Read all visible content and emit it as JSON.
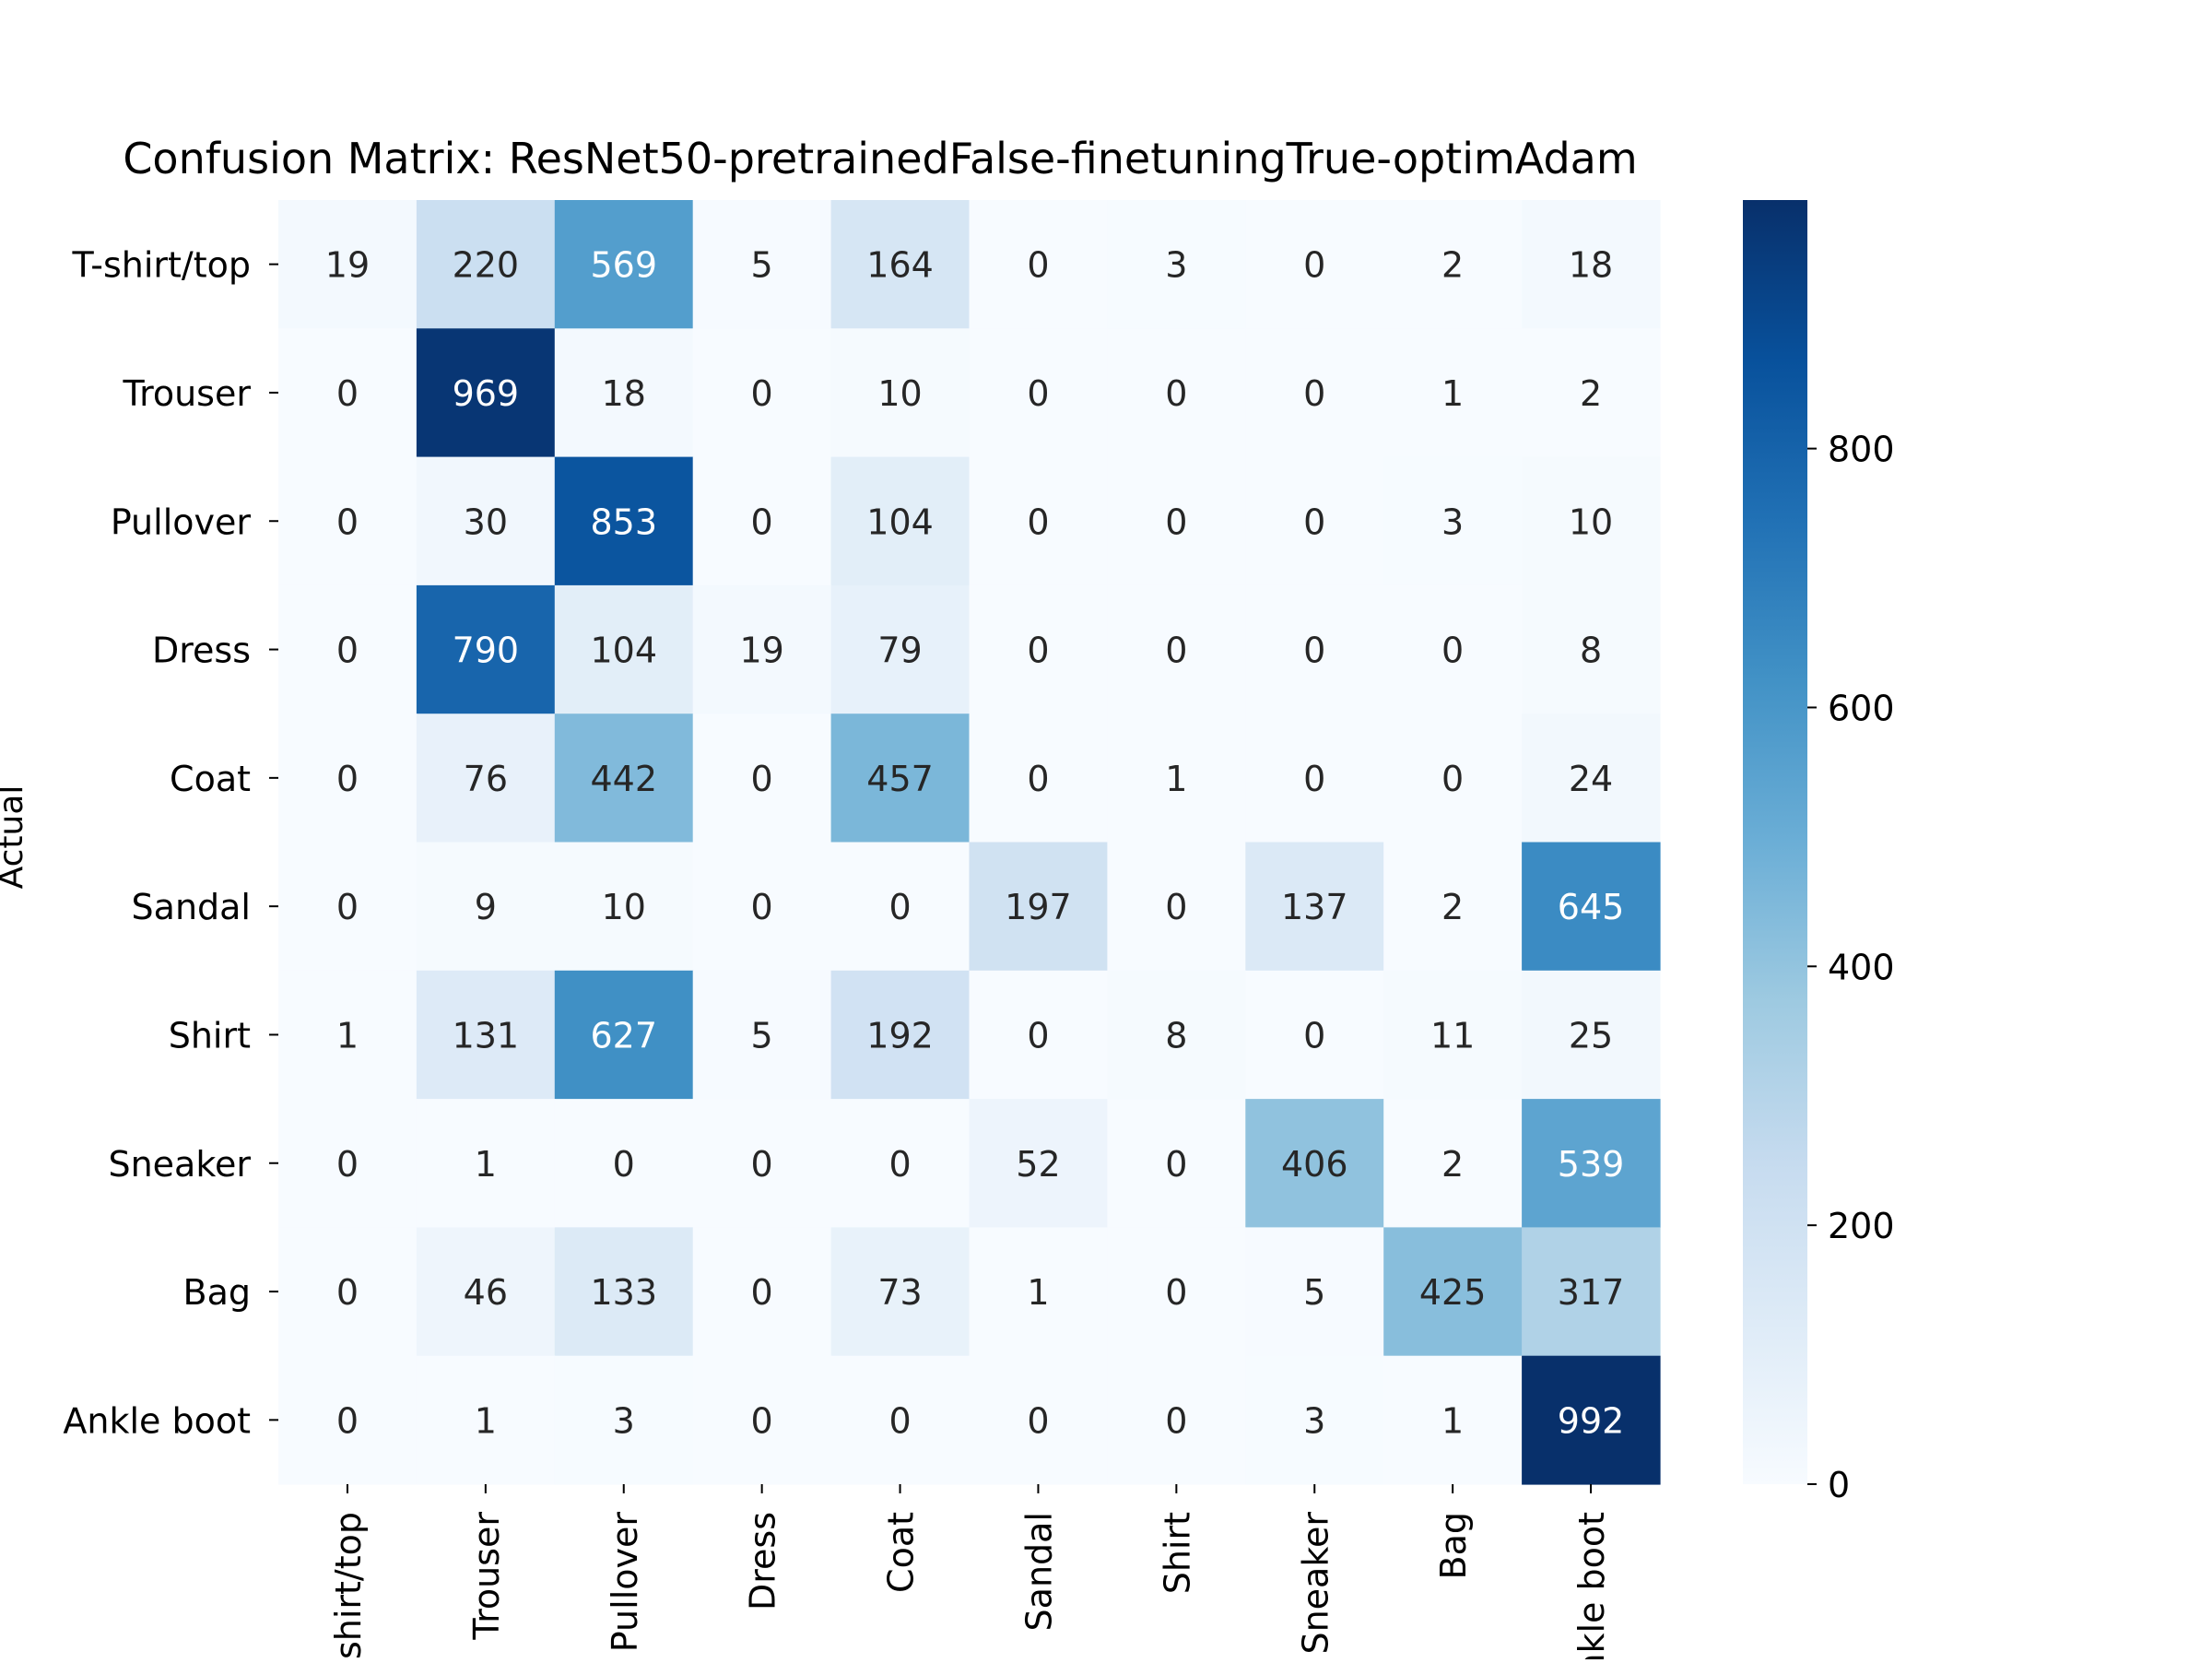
{
  "chart_data": {
    "type": "heatmap",
    "title": "Confusion Matrix: ResNet50-pretrainedFalse-finetuningTrue-optimAdam",
    "xlabel": "",
    "ylabel": "Actual",
    "row_labels": [
      "T-shirt/top",
      "Trouser",
      "Pullover",
      "Dress",
      "Coat",
      "Sandal",
      "Shirt",
      "Sneaker",
      "Bag",
      "Ankle boot"
    ],
    "col_labels": [
      "T-shirt/top",
      "Trouser",
      "Pullover",
      "Dress",
      "Coat",
      "Sandal",
      "Shirt",
      "Sneaker",
      "Bag",
      "Ankle boot"
    ],
    "values": [
      [
        19,
        220,
        569,
        5,
        164,
        0,
        3,
        0,
        2,
        18
      ],
      [
        0,
        969,
        18,
        0,
        10,
        0,
        0,
        0,
        1,
        2
      ],
      [
        0,
        30,
        853,
        0,
        104,
        0,
        0,
        0,
        3,
        10
      ],
      [
        0,
        790,
        104,
        19,
        79,
        0,
        0,
        0,
        0,
        8
      ],
      [
        0,
        76,
        442,
        0,
        457,
        0,
        1,
        0,
        0,
        24
      ],
      [
        0,
        9,
        10,
        0,
        0,
        197,
        0,
        137,
        2,
        645
      ],
      [
        1,
        131,
        627,
        5,
        192,
        0,
        8,
        0,
        11,
        25
      ],
      [
        0,
        1,
        0,
        0,
        0,
        52,
        0,
        406,
        2,
        539
      ],
      [
        0,
        46,
        133,
        0,
        73,
        1,
        0,
        5,
        425,
        317
      ],
      [
        0,
        1,
        3,
        0,
        0,
        0,
        0,
        3,
        1,
        992
      ]
    ],
    "colormap": "Blues",
    "colorbar": {
      "range": [
        0,
        992
      ],
      "ticks": [
        0,
        200,
        400,
        600,
        800
      ],
      "colors": [
        "#f7fbff",
        "#deebf7",
        "#c6dbef",
        "#9ecae1",
        "#6baed6",
        "#4292c6",
        "#2171b5",
        "#08519c",
        "#08306b"
      ]
    },
    "annotation_text_colors": {
      "dark": "#262626",
      "light": "#ffffff"
    },
    "grid": false,
    "legend": "colorbar-right"
  }
}
